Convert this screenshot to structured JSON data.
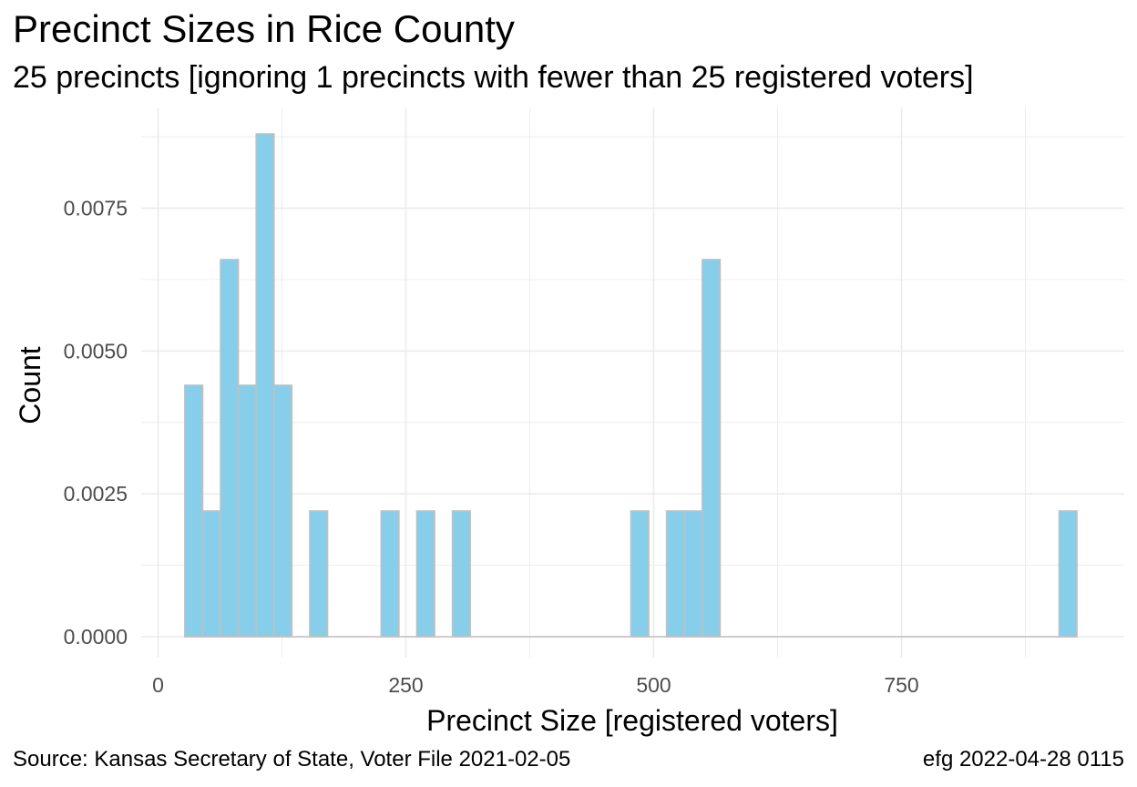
{
  "chart_data": {
    "type": "bar",
    "title": "Precinct Sizes in Rice County",
    "subtitle": "25 precincts [ignoring 1 precincts with fewer than 25 registered voters]",
    "xlabel": "Precinct Size [registered voters]",
    "ylabel": "Count",
    "xlim": [
      -20,
      980
    ],
    "ylim": [
      0,
      0.0089
    ],
    "x_ticks": [
      0,
      250,
      500,
      750
    ],
    "y_ticks": [
      0.0,
      0.0025,
      0.005,
      0.0075
    ],
    "y_tick_labels": [
      "0.0000",
      "0.0025",
      "0.0050",
      "0.0075"
    ],
    "bin_width": 18,
    "bins": [
      {
        "x0": 27,
        "x1": 45,
        "value": 0.0044
      },
      {
        "x0": 45,
        "x1": 63,
        "value": 0.0022
      },
      {
        "x0": 63,
        "x1": 81,
        "value": 0.0066
      },
      {
        "x0": 81,
        "x1": 99,
        "value": 0.0044
      },
      {
        "x0": 99,
        "x1": 117,
        "value": 0.0088
      },
      {
        "x0": 117,
        "x1": 135,
        "value": 0.0044
      },
      {
        "x0": 153,
        "x1": 171,
        "value": 0.0022
      },
      {
        "x0": 225,
        "x1": 243,
        "value": 0.0022
      },
      {
        "x0": 261,
        "x1": 279,
        "value": 0.0022
      },
      {
        "x0": 297,
        "x1": 315,
        "value": 0.0022
      },
      {
        "x0": 477,
        "x1": 495,
        "value": 0.0022
      },
      {
        "x0": 513,
        "x1": 531,
        "value": 0.0022
      },
      {
        "x0": 531,
        "x1": 549,
        "value": 0.0022
      },
      {
        "x0": 549,
        "x1": 567,
        "value": 0.0066
      },
      {
        "x0": 909,
        "x1": 927,
        "value": 0.0022
      }
    ],
    "baseline_range": [
      27,
      927
    ],
    "grid": true,
    "legend": "none",
    "colors": {
      "fill": "#87CEEB",
      "stroke": "#C0C0C0",
      "grid": "#EBEBEB"
    }
  },
  "caption": {
    "source": "Source:  Kansas Secretary of State, Voter File  2021-02-05",
    "stamp": "efg 2022-04-28 0115"
  }
}
